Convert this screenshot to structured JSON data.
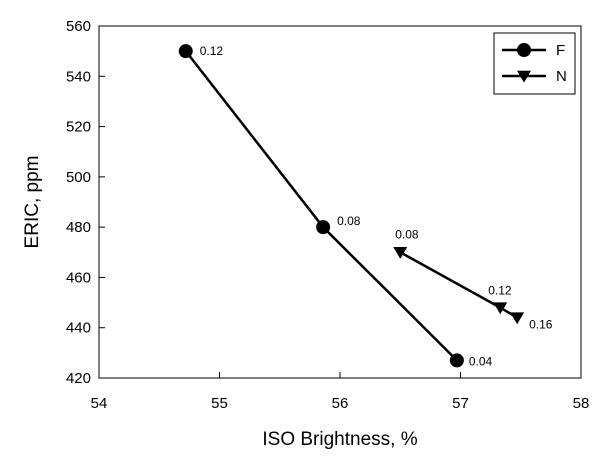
{
  "chart_data": {
    "type": "line",
    "xlabel": "ISO Brightness, %",
    "ylabel": "ERIC, ppm",
    "xlim": [
      54,
      58
    ],
    "ylim": [
      420,
      560
    ],
    "xticks": [
      54,
      55,
      56,
      57,
      58
    ],
    "yticks": [
      420,
      440,
      460,
      480,
      500,
      520,
      540,
      560
    ],
    "grid": false,
    "legend_position": "top-right",
    "series": [
      {
        "name": "F",
        "marker": "circle",
        "color": "#000000",
        "points": [
          {
            "x": 54.72,
            "y": 550,
            "label": "0.12"
          },
          {
            "x": 55.86,
            "y": 480,
            "label": "0.08"
          },
          {
            "x": 56.97,
            "y": 427,
            "label": "0.04"
          }
        ]
      },
      {
        "name": "N",
        "marker": "triangle-down",
        "color": "#000000",
        "points": [
          {
            "x": 56.5,
            "y": 470,
            "label": "0.08"
          },
          {
            "x": 57.33,
            "y": 448,
            "label": "0.12"
          },
          {
            "x": 57.47,
            "y": 444,
            "label": "0.16"
          }
        ]
      }
    ]
  }
}
